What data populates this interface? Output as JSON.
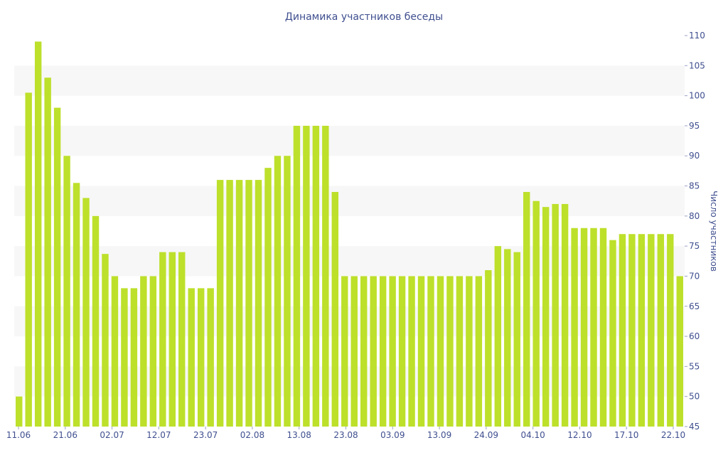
{
  "chart_data": {
    "type": "bar",
    "title": "Динамика участников беседы",
    "ylabel": "Число участников",
    "xlabel": "",
    "ylim": [
      45,
      110
    ],
    "y_ticks": [
      45,
      50,
      55,
      60,
      65,
      70,
      75,
      80,
      85,
      90,
      95,
      100,
      105,
      110
    ],
    "y_axis_side": "right",
    "grid": "alternating horizontal bands",
    "colors": {
      "bar": "#bde02b",
      "band": "#f7f7f7",
      "text": "#3f4f8f"
    },
    "x_tick_labels": [
      "11.06",
      "21.06",
      "02.07",
      "12.07",
      "23.07",
      "02.08",
      "13.08",
      "23.08",
      "03.09",
      "13.09",
      "24.09",
      "04.10",
      "12.10",
      "17.10",
      "22.10"
    ],
    "values": [
      50,
      100.5,
      109,
      103,
      98,
      90,
      85.5,
      83,
      80,
      73.7,
      70,
      68,
      68,
      70,
      70,
      74,
      74,
      74,
      68,
      68,
      68,
      86,
      86,
      86,
      86,
      86,
      88,
      90,
      90,
      95,
      95,
      95,
      95,
      84,
      70,
      70,
      70,
      70,
      70,
      70,
      70,
      70,
      70,
      70,
      70,
      70,
      70,
      70,
      70,
      71,
      75,
      74.5,
      74,
      84,
      82.5,
      81.5,
      82,
      82,
      78,
      78,
      78,
      78,
      76,
      77,
      77,
      77,
      77,
      77,
      77,
      70
    ]
  }
}
